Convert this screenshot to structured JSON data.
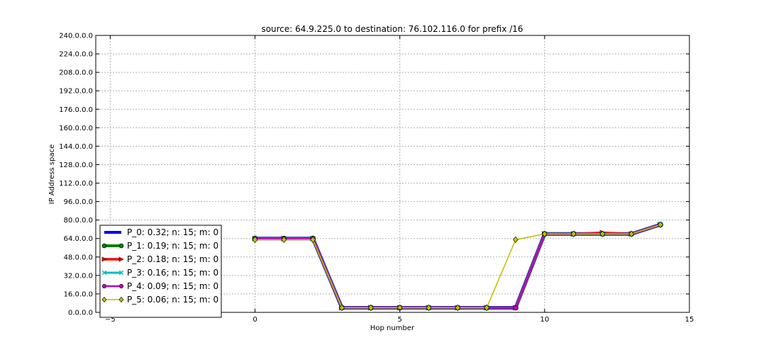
{
  "chart_data": {
    "type": "line",
    "title": "source: 64.9.225.0 to destination: 76.102.116.0 for prefix /16",
    "xlabel": "Hop number",
    "ylabel": "IP Address space",
    "xlim": [
      -5.5,
      15
    ],
    "ylim": [
      0,
      240
    ],
    "grid": true,
    "legend_position": "lower-left",
    "x_ticks": [
      {
        "value": -5,
        "label": "−5"
      },
      {
        "value": 0,
        "label": "0"
      },
      {
        "value": 5,
        "label": "5"
      },
      {
        "value": 10,
        "label": "10"
      },
      {
        "value": 15,
        "label": "15"
      }
    ],
    "y_ticks": [
      {
        "value": 0,
        "label": "0.0.0.0"
      },
      {
        "value": 16,
        "label": "16.0.0.0"
      },
      {
        "value": 32,
        "label": "32.0.0.0"
      },
      {
        "value": 48,
        "label": "48.0.0.0"
      },
      {
        "value": 64,
        "label": "64.0.0.0"
      },
      {
        "value": 80,
        "label": "80.0.0.0"
      },
      {
        "value": 96,
        "label": "96.0.0.0"
      },
      {
        "value": 112,
        "label": "112.0.0.0"
      },
      {
        "value": 128,
        "label": "128.0.0.0"
      },
      {
        "value": 144,
        "label": "144.0.0.0"
      },
      {
        "value": 160,
        "label": "160.0.0.0"
      },
      {
        "value": 176,
        "label": "176.0.0.0"
      },
      {
        "value": 192,
        "label": "192.0.0.0"
      },
      {
        "value": 208,
        "label": "208.0.0.0"
      },
      {
        "value": 224,
        "label": "224.0.0.0"
      },
      {
        "value": 240,
        "label": "240.0.0.0"
      }
    ],
    "x": [
      0,
      1,
      2,
      3,
      4,
      5,
      6,
      7,
      8,
      9,
      10,
      11,
      12,
      13,
      14
    ],
    "series": [
      {
        "name": "P_0",
        "legend": "P_0: 0.32; n: 15; m: 0",
        "color": "#0000ff",
        "line_width": 5,
        "marker": "none",
        "values": [
          64,
          64,
          64,
          4,
          4,
          4,
          4,
          4,
          4,
          4,
          68,
          68,
          68,
          68,
          76
        ]
      },
      {
        "name": "P_1",
        "legend": "P_1: 0.19; n: 15; m: 0",
        "color": "#008000",
        "line_width": 4,
        "marker": "circle",
        "values": [
          64,
          64,
          64,
          4,
          4,
          4,
          4,
          4,
          4,
          4,
          68,
          68,
          68,
          68,
          76
        ]
      },
      {
        "name": "P_2",
        "legend": "P_2: 0.18; n: 15; m: 0",
        "color": "#ff0000",
        "line_width": 3.5,
        "marker": "triangle-right",
        "values": [
          64,
          64,
          64,
          4,
          4,
          4,
          4,
          4,
          4,
          4,
          68,
          68,
          69,
          68,
          76
        ]
      },
      {
        "name": "P_3",
        "legend": "P_3: 0.16; n: 15; m: 0",
        "color": "#00bfbf",
        "line_width": 3,
        "marker": "x",
        "values": [
          64,
          64,
          64,
          4,
          4,
          4,
          4,
          4,
          4,
          4,
          68,
          68,
          68,
          68,
          76
        ]
      },
      {
        "name": "P_4",
        "legend": "P_4: 0.09; n: 15; m: 0",
        "color": "#bf00bf",
        "line_width": 2.5,
        "marker": "hexagon",
        "values": [
          64,
          64,
          64,
          4,
          4,
          4,
          4,
          4,
          4,
          4,
          68,
          68,
          68,
          68,
          76
        ]
      },
      {
        "name": "P_5",
        "legend": "P_5: 0.06; n: 15; m: 0",
        "color": "#bfbf00",
        "line_width": 1.5,
        "marker": "diamond",
        "values": [
          63,
          63,
          63,
          4,
          4,
          4,
          4,
          4,
          4,
          63,
          68,
          68,
          68,
          68,
          76
        ]
      }
    ]
  }
}
